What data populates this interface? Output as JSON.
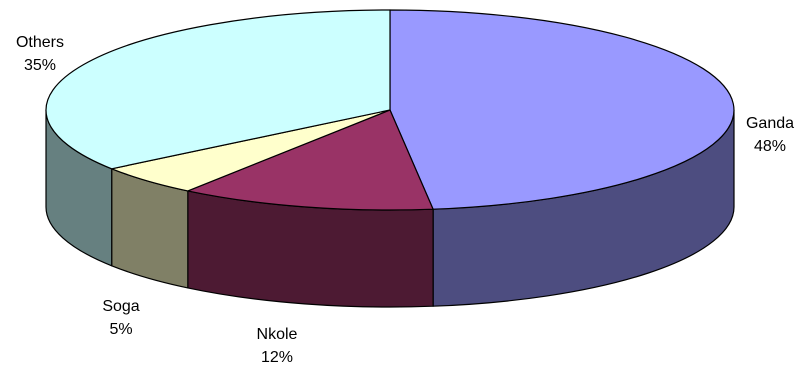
{
  "chart_data": {
    "type": "pie",
    "style": "3d",
    "title": "",
    "legend": "none",
    "slices": [
      {
        "label": "Ganda",
        "value": 48,
        "display": "48%",
        "top_color": "#9999ff",
        "side_color": "#4d4d80"
      },
      {
        "label": "Nkole",
        "value": 12,
        "display": "12%",
        "top_color": "#993366",
        "side_color": "#4d1a33"
      },
      {
        "label": "Soga",
        "value": 5,
        "display": "5%",
        "top_color": "#ffffcc",
        "side_color": "#808066"
      },
      {
        "label": "Others",
        "value": 35,
        "display": "35%",
        "top_color": "#ccffff",
        "side_color": "#668080"
      }
    ]
  }
}
